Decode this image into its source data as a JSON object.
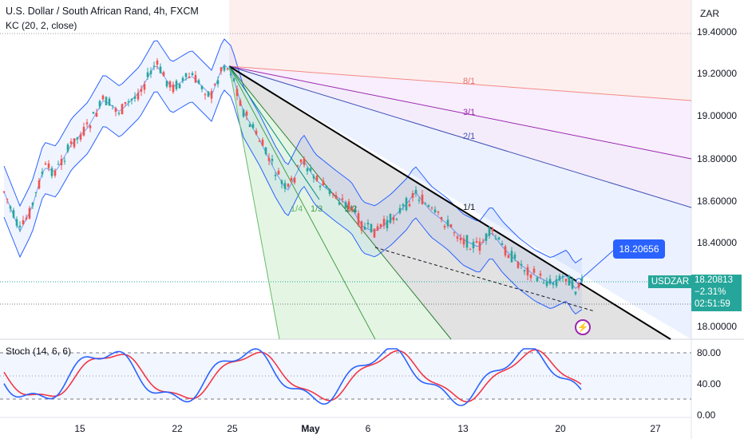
{
  "header": {
    "title": "U.S. Dollar / South African Rand, 4h, FXCM",
    "indicator": "KC (20, 2, close)"
  },
  "currency": "ZAR",
  "price_axis": [
    "19.40000",
    "19.20000",
    "19.00000",
    "18.80000",
    "18.60000",
    "18.40000",
    "18.00000"
  ],
  "stoch_axis": [
    "80.00",
    "40.00",
    "0.00"
  ],
  "date_axis": [
    {
      "label": "15",
      "bold": false
    },
    {
      "label": "22",
      "bold": false
    },
    {
      "label": "25",
      "bold": false
    },
    {
      "label": "May",
      "bold": true
    },
    {
      "label": "6",
      "bold": false
    },
    {
      "label": "13",
      "bold": false
    },
    {
      "label": "20",
      "bold": false
    },
    {
      "label": "27",
      "bold": false
    }
  ],
  "fan_labels": [
    "8/1",
    "3/1",
    "2/1",
    "1/1",
    "1/4",
    "1/3",
    "1/2"
  ],
  "callout": "18.20656",
  "symbol": "USDZAR",
  "last_price": "18.20813",
  "change": "−2.31%",
  "countdown": "02:51:59",
  "stoch_label": "Stoch (14, 6, 6)",
  "colors": {
    "up": "#26a69a",
    "down": "#ef5350",
    "channel": "#2962ff",
    "stoch_k": "#2962ff",
    "stoch_d": "#f23645"
  }
}
